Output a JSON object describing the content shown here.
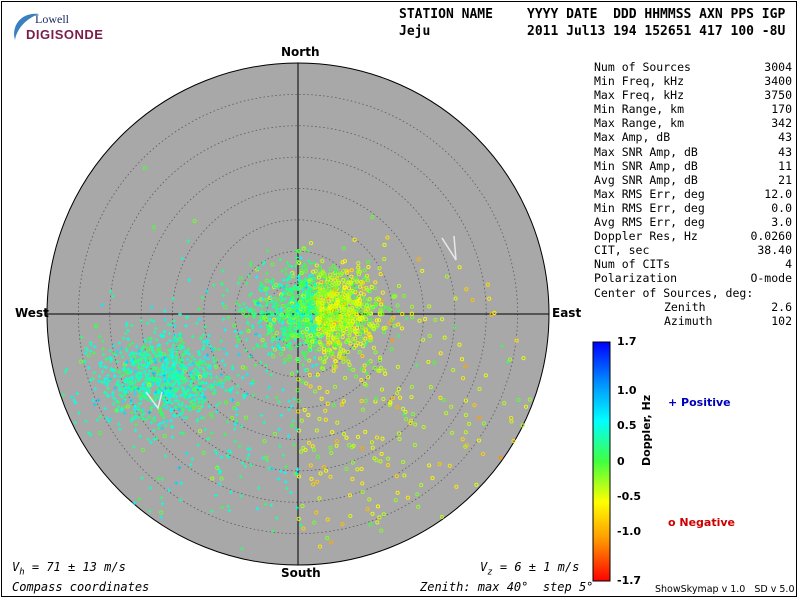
{
  "logo": {
    "line1": "Lowell",
    "line2": "DIGISONDE"
  },
  "header": {
    "col_station_label": "STATION NAME",
    "station": "Jeju",
    "fields_label": "YYYY DATE  DDD HHMMSS AXN PPS IGP",
    "fields_value": "2011 Jul13 194 152651 417 100 -8U"
  },
  "compass": {
    "north": "North",
    "south": "South",
    "east": "East",
    "west": "West"
  },
  "stats": [
    {
      "label": "Num of Sources",
      "value": "3004"
    },
    {
      "label": "Min Freq, kHz",
      "value": "3400"
    },
    {
      "label": "Max Freq, kHz",
      "value": "3750"
    },
    {
      "label": "Min Range, km",
      "value": "170"
    },
    {
      "label": "Max Range, km",
      "value": "342"
    },
    {
      "label": "Max Amp, dB",
      "value": "43"
    },
    {
      "label": "Max SNR Amp, dB",
      "value": "43"
    },
    {
      "label": "Min SNR Amp, dB",
      "value": "11"
    },
    {
      "label": "Avg SNR Amp, dB",
      "value": "21"
    },
    {
      "label": "Max RMS Err, deg",
      "value": "12.0"
    },
    {
      "label": "Min RMS Err, deg",
      "value": "0.0"
    },
    {
      "label": "Avg RMS Err, deg",
      "value": "3.0"
    },
    {
      "label": "Doppler Res, Hz",
      "value": "0.0260"
    },
    {
      "label": "CIT, sec",
      "value": "38.40"
    },
    {
      "label": "Num of CITs",
      "value": "4"
    },
    {
      "label": "Polarization",
      "value": "O-mode"
    },
    {
      "label": "Center of Sources, deg:",
      "value": ""
    }
  ],
  "center": {
    "zenith_label": "Zenith",
    "zenith_value": "2.6",
    "azimuth_label": "Azimuth",
    "azimuth_value": "102"
  },
  "colorbar": {
    "title": "Doppler, Hz",
    "ticks": [
      "1.7",
      "1.0",
      "0.5",
      "0",
      "-0.5",
      "-1.0",
      "-1.7"
    ],
    "tick_values": [
      1.7,
      1.0,
      0.5,
      0,
      -0.5,
      -1.0,
      -1.7
    ],
    "range": [
      -1.7,
      1.7
    ]
  },
  "legend": {
    "positive": "+ Positive",
    "negative": "o Negative"
  },
  "footer": {
    "vh_prefix": "V",
    "vh_sub": "h",
    "vh_text": " = 71 ± 13 m/s",
    "vz_prefix": "V",
    "vz_sub": "z",
    "vz_text": " = 6 ± 1 m/s",
    "compass_coords": "Compass coordinates",
    "zenith_info": "Zenith: max 40°  step 5°",
    "version": "ShowSkymap v 1.0   SD v 5.0"
  },
  "sky": {
    "max_zenith_deg": 40,
    "ring_step_deg": 5,
    "clusters": [
      {
        "zenith_deg": 3,
        "azimuth_deg": 85,
        "spread_deg": 5,
        "count": 1500
      },
      {
        "zenith_deg": 24,
        "azimuth_deg": 245,
        "spread_deg": 5,
        "count": 900
      },
      {
        "zenith_deg": 15,
        "azimuth_deg": 180,
        "spread_deg": 14,
        "count": 600
      }
    ],
    "total_sources": 3004,
    "vectors": [
      {
        "label": "east-arrow"
      },
      {
        "label": "west-arrow"
      }
    ],
    "colors": {
      "disc": "#a8a8a8",
      "rings": "#5a5a5a",
      "axes": "#000000"
    }
  }
}
